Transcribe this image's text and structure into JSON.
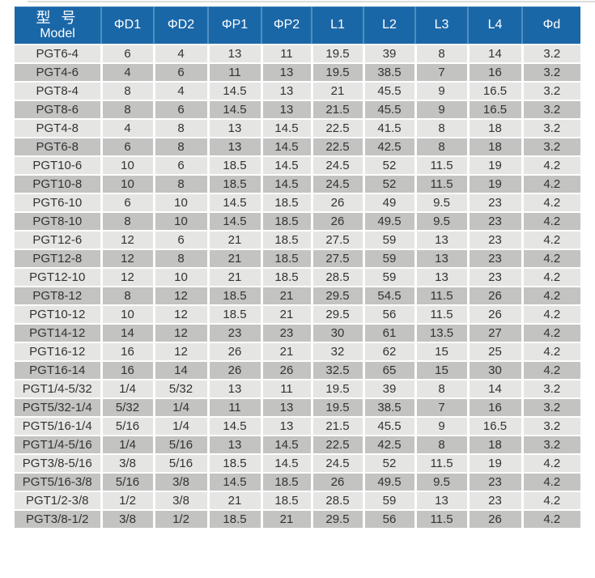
{
  "colors": {
    "header_bg": "#1a67a8",
    "header_separator": "#4e8fc0",
    "row_light": "#e5e5e4",
    "row_dark": "#c3c3c2"
  },
  "table": {
    "header": {
      "model_zh": "型 号",
      "model_en": "Model",
      "columns": [
        "ΦD1",
        "ΦD2",
        "ΦP1",
        "ΦP2",
        "L1",
        "L2",
        "L3",
        "L4",
        "Φd"
      ]
    },
    "rows": [
      {
        "model": "PGT6-4",
        "values": [
          "6",
          "4",
          "13",
          "11",
          "19.5",
          "39",
          "8",
          "14",
          "3.2"
        ]
      },
      {
        "model": "PGT4-6",
        "values": [
          "4",
          "6",
          "11",
          "13",
          "19.5",
          "38.5",
          "7",
          "16",
          "3.2"
        ]
      },
      {
        "model": "PGT8-4",
        "values": [
          "8",
          "4",
          "14.5",
          "13",
          "21",
          "45.5",
          "9",
          "16.5",
          "3.2"
        ]
      },
      {
        "model": "PGT8-6",
        "values": [
          "8",
          "6",
          "14.5",
          "13",
          "21.5",
          "45.5",
          "9",
          "16.5",
          "3.2"
        ]
      },
      {
        "model": "PGT4-8",
        "values": [
          "4",
          "8",
          "13",
          "14.5",
          "22.5",
          "41.5",
          "8",
          "18",
          "3.2"
        ]
      },
      {
        "model": "PGT6-8",
        "values": [
          "6",
          "8",
          "13",
          "14.5",
          "22.5",
          "42.5",
          "8",
          "18",
          "3.2"
        ]
      },
      {
        "model": "PGT10-6",
        "values": [
          "10",
          "6",
          "18.5",
          "14.5",
          "24.5",
          "52",
          "11.5",
          "19",
          "4.2"
        ]
      },
      {
        "model": "PGT10-8",
        "values": [
          "10",
          "8",
          "18.5",
          "14.5",
          "24.5",
          "52",
          "11.5",
          "19",
          "4.2"
        ]
      },
      {
        "model": "PGT6-10",
        "values": [
          "6",
          "10",
          "14.5",
          "18.5",
          "26",
          "49",
          "9.5",
          "23",
          "4.2"
        ]
      },
      {
        "model": "PGT8-10",
        "values": [
          "8",
          "10",
          "14.5",
          "18.5",
          "26",
          "49.5",
          "9.5",
          "23",
          "4.2"
        ]
      },
      {
        "model": "PGT12-6",
        "values": [
          "12",
          "6",
          "21",
          "18.5",
          "27.5",
          "59",
          "13",
          "23",
          "4.2"
        ]
      },
      {
        "model": "PGT12-8",
        "values": [
          "12",
          "8",
          "21",
          "18.5",
          "27.5",
          "59",
          "13",
          "23",
          "4.2"
        ]
      },
      {
        "model": "PGT12-10",
        "values": [
          "12",
          "10",
          "21",
          "18.5",
          "28.5",
          "59",
          "13",
          "23",
          "4.2"
        ]
      },
      {
        "model": "PGT8-12",
        "values": [
          "8",
          "12",
          "18.5",
          "21",
          "29.5",
          "54.5",
          "11.5",
          "26",
          "4.2"
        ]
      },
      {
        "model": "PGT10-12",
        "values": [
          "10",
          "12",
          "18.5",
          "21",
          "29.5",
          "56",
          "11.5",
          "26",
          "4.2"
        ]
      },
      {
        "model": "PGT14-12",
        "values": [
          "14",
          "12",
          "23",
          "23",
          "30",
          "61",
          "13.5",
          "27",
          "4.2"
        ]
      },
      {
        "model": "PGT16-12",
        "values": [
          "16",
          "12",
          "26",
          "21",
          "32",
          "62",
          "15",
          "25",
          "4.2"
        ]
      },
      {
        "model": "PGT16-14",
        "values": [
          "16",
          "14",
          "26",
          "26",
          "32.5",
          "65",
          "15",
          "30",
          "4.2"
        ]
      },
      {
        "model": "PGT1/4-5/32",
        "values": [
          "1/4",
          "5/32",
          "13",
          "11",
          "19.5",
          "39",
          "8",
          "14",
          "3.2"
        ]
      },
      {
        "model": "PGT5/32-1/4",
        "values": [
          "5/32",
          "1/4",
          "11",
          "13",
          "19.5",
          "38.5",
          "7",
          "16",
          "3.2"
        ]
      },
      {
        "model": "PGT5/16-1/4",
        "values": [
          "5/16",
          "1/4",
          "14.5",
          "13",
          "21.5",
          "45.5",
          "9",
          "16.5",
          "3.2"
        ]
      },
      {
        "model": "PGT1/4-5/16",
        "values": [
          "1/4",
          "5/16",
          "13",
          "14.5",
          "22.5",
          "42.5",
          "8",
          "18",
          "3.2"
        ]
      },
      {
        "model": "PGT3/8-5/16",
        "values": [
          "3/8",
          "5/16",
          "18.5",
          "14.5",
          "24.5",
          "52",
          "11.5",
          "19",
          "4.2"
        ]
      },
      {
        "model": "PGT5/16-3/8",
        "values": [
          "5/16",
          "3/8",
          "14.5",
          "18.5",
          "26",
          "49.5",
          "9.5",
          "23",
          "4.2"
        ]
      },
      {
        "model": "PGT1/2-3/8",
        "values": [
          "1/2",
          "3/8",
          "21",
          "18.5",
          "28.5",
          "59",
          "13",
          "23",
          "4.2"
        ]
      },
      {
        "model": "PGT3/8-1/2",
        "values": [
          "3/8",
          "1/2",
          "18.5",
          "21",
          "29.5",
          "56",
          "11.5",
          "26",
          "4.2"
        ]
      }
    ]
  }
}
